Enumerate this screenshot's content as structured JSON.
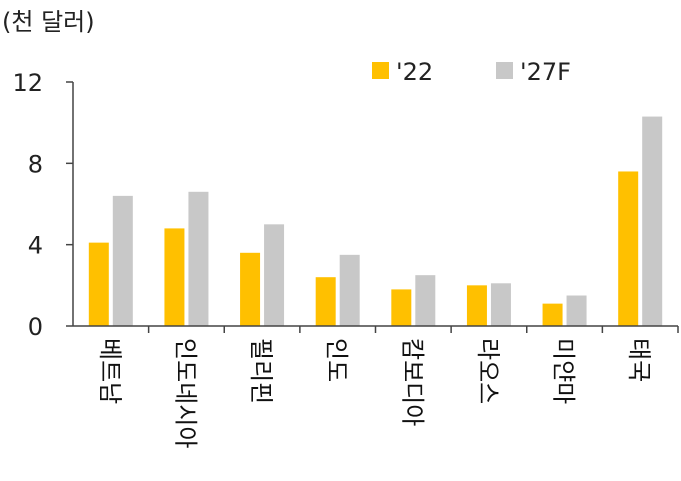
{
  "chart_data": {
    "type": "bar",
    "unit_label": "(천 달러)",
    "categories": [
      "베트남",
      "인도네시아",
      "필리핀",
      "인도",
      "캄보디아",
      "라오스",
      "미얀마",
      "태국"
    ],
    "series": [
      {
        "name": "'22",
        "color": "#FFC000",
        "values": [
          4.1,
          4.8,
          3.6,
          2.4,
          1.8,
          2.0,
          1.1,
          7.6
        ]
      },
      {
        "name": "'27F",
        "color": "#C8C8C8",
        "values": [
          6.4,
          6.6,
          5.0,
          3.5,
          2.5,
          2.1,
          1.5,
          10.3
        ]
      }
    ],
    "ylim": [
      0,
      12
    ],
    "yticks": [
      "0",
      "4",
      "8",
      "12"
    ],
    "grid": false,
    "legend_position": "top-right"
  }
}
